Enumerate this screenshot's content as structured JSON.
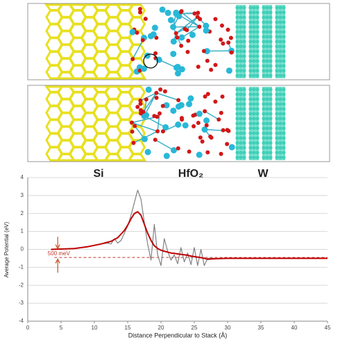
{
  "structure_labels": [
    "Si",
    "HfO₂",
    "W"
  ],
  "chart_data": {
    "type": "line",
    "xlabel": "Distance Perpendicular to Stack (Å)",
    "ylabel": "Average Potential (eV)",
    "x": [
      3.5,
      5,
      7,
      9,
      11,
      12,
      12.5,
      13,
      13.5,
      14,
      14.5,
      15,
      15.5,
      16,
      16.5,
      17,
      17.5,
      18,
      18.5,
      19,
      19.5,
      20,
      20.5,
      21,
      21.5,
      22,
      22.5,
      23,
      23.5,
      24,
      24.5,
      25,
      25.5,
      26,
      26.5,
      27,
      28,
      30,
      35,
      40,
      45
    ],
    "series": [
      {
        "color": "#808080",
        "width": 1.2,
        "values": [
          0,
          0.02,
          0.05,
          0.15,
          0.3,
          0.35,
          0.3,
          0.6,
          0.35,
          0.5,
          0.9,
          1.3,
          1.9,
          2.6,
          3.3,
          2.8,
          1.5,
          0.3,
          -0.6,
          1.4,
          -0.3,
          -0.9,
          0.6,
          -0.1,
          -0.6,
          -0.3,
          -0.8,
          0.1,
          -0.7,
          -0.2,
          -0.85,
          0.1,
          -0.9,
          0,
          -0.9,
          -0.5,
          -0.5,
          null,
          null,
          null,
          null
        ]
      },
      {
        "color": "#c00000",
        "width": 2,
        "values": [
          0,
          0.02,
          0.05,
          0.15,
          0.3,
          0.4,
          0.45,
          0.55,
          0.65,
          0.85,
          1.05,
          1.35,
          1.7,
          2.0,
          2.1,
          1.9,
          1.4,
          0.9,
          0.5,
          0.2,
          0.05,
          -0.05,
          -0.1,
          -0.15,
          -0.2,
          -0.22,
          -0.25,
          -0.28,
          -0.3,
          -0.33,
          -0.37,
          -0.4,
          -0.43,
          -0.46,
          -0.5,
          -0.55,
          -0.52,
          -0.5,
          -0.5,
          -0.5,
          -0.5
        ]
      }
    ],
    "reference_line": {
      "y": -0.45,
      "x": [
        4,
        45
      ],
      "color": "#c0392b"
    },
    "annotation": {
      "text": "500 meV",
      "x": 3,
      "y": -0.25
    },
    "xlim": [
      0,
      45
    ],
    "xticks": [
      0,
      5,
      10,
      15,
      20,
      25,
      30,
      35,
      40,
      45
    ],
    "ylim": [
      -4,
      4
    ],
    "yticks": [
      -4,
      -3,
      -2,
      -1,
      0,
      1,
      2,
      3,
      4
    ],
    "grid": true
  }
}
